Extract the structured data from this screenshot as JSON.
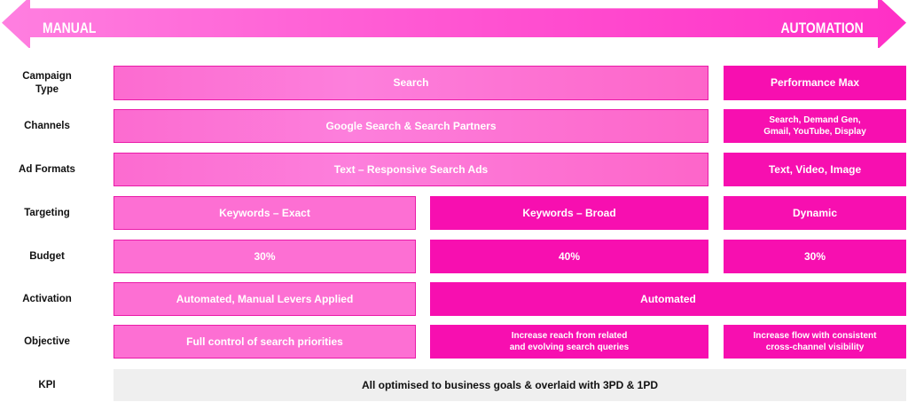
{
  "arrow": {
    "left_label": "MANUAL",
    "right_label": "AUTOMATION",
    "color": "#ff4fd0"
  },
  "rows": {
    "campaign_type": {
      "label": "Campaign\nType",
      "cells": [
        "Search",
        "Performance Max"
      ]
    },
    "channels": {
      "label": "Channels",
      "cells": [
        "Google Search & Search Partners",
        "Search, Demand Gen,\nGmail, YouTube, Display"
      ]
    },
    "ad_formats": {
      "label": "Ad Formats",
      "cells": [
        "Text – Responsive Search Ads",
        "Text, Video, Image"
      ]
    },
    "targeting": {
      "label": "Targeting",
      "cells": [
        "Keywords – Exact",
        "Keywords – Broad",
        "Dynamic"
      ]
    },
    "budget": {
      "label": "Budget",
      "cells": [
        "30%",
        "40%",
        "30%"
      ]
    },
    "activation": {
      "label": "Activation",
      "cells": [
        "Automated, Manual Levers Applied",
        "Automated"
      ]
    },
    "objective": {
      "label": "Objective",
      "cells": [
        "Full control of search priorities",
        "Increase reach from related\nand evolving search queries",
        "Increase flow with consistent\ncross-channel visibility"
      ]
    },
    "kpi": {
      "label": "KPI",
      "cells": [
        "All optimised to business goals & overlaid with 3PD & 1PD"
      ]
    }
  },
  "colors": {
    "light_pink": "#fd6fd3",
    "hot_pink": "#f70fb0",
    "kpi_grey": "#efefef"
  }
}
